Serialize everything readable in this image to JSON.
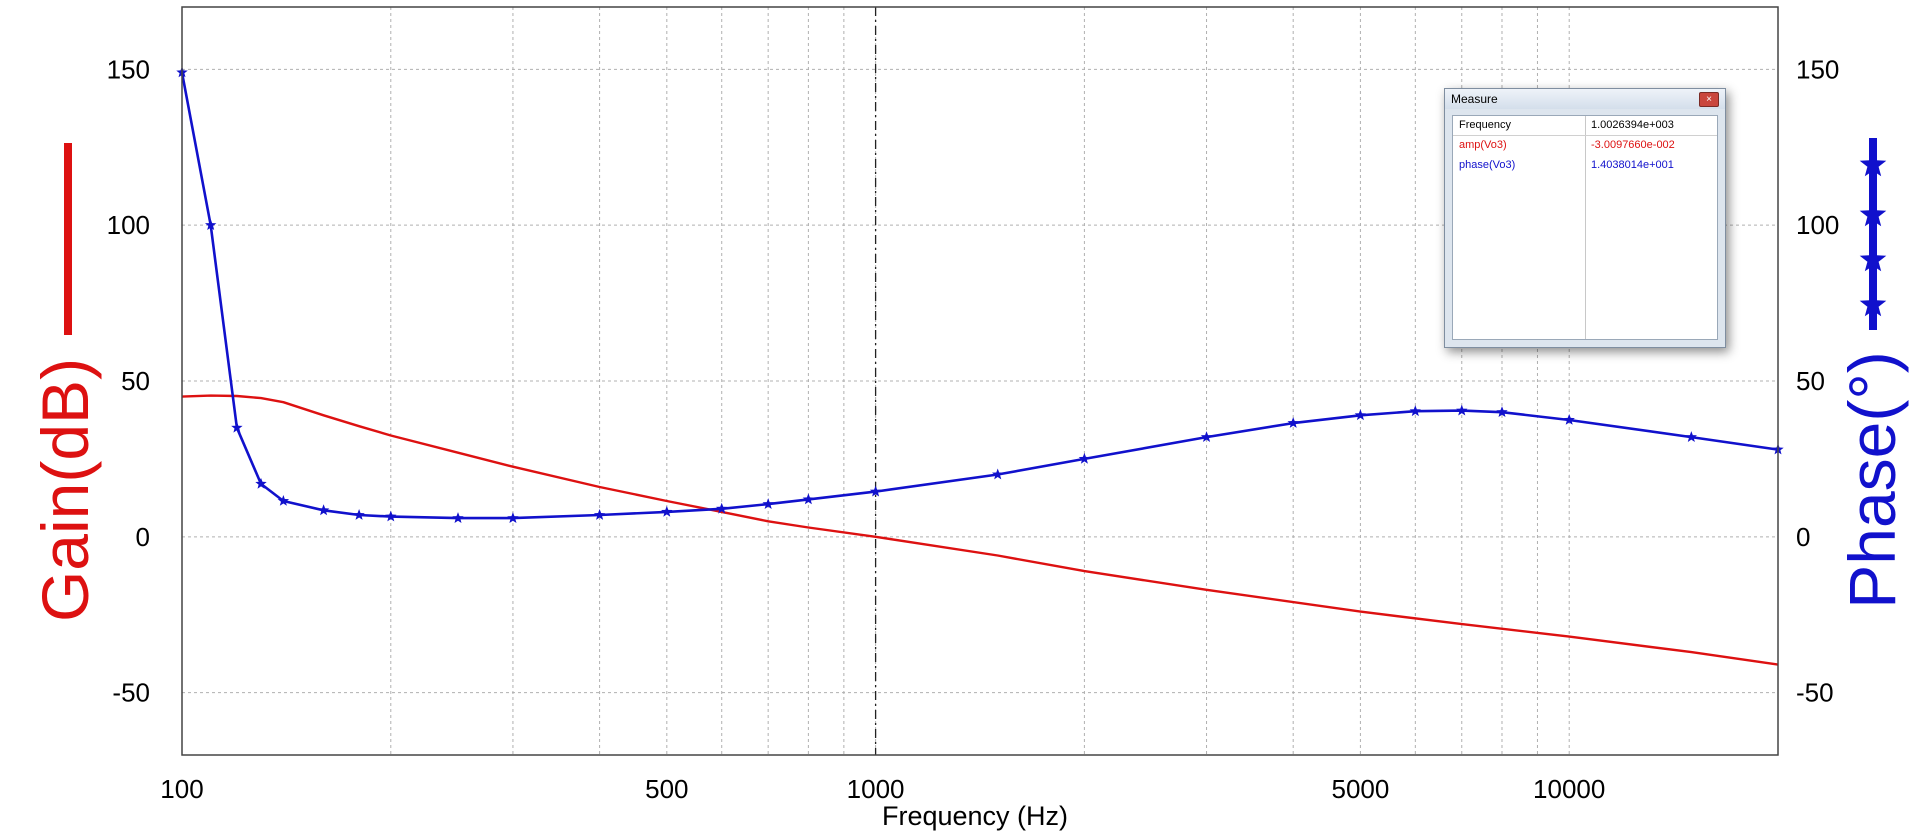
{
  "chart_data": {
    "type": "line",
    "xlabel": "Frequency (Hz)",
    "xscale": "log",
    "xlim": [
      100,
      20000
    ],
    "x_tick_labels": [
      "100",
      "500",
      "1000",
      "5000",
      "10000"
    ],
    "x_ticks": [
      100,
      500,
      1000,
      5000,
      10000
    ],
    "ylabel_left": "Gain(dB)",
    "ylabel_right": "Phase(°)",
    "ylim": [
      -70,
      170
    ],
    "y_tick_labels": [
      "150",
      "100",
      "50",
      "0",
      "-50"
    ],
    "y_ticks": [
      150,
      100,
      50,
      0,
      -50
    ],
    "grid": true,
    "cursor_x": 1000,
    "series": [
      {
        "color": "#dd1111",
        "axis": "left",
        "marker": "none",
        "x": [
          100,
          110,
          120,
          130,
          140,
          160,
          180,
          200,
          250,
          300,
          400,
          500,
          600,
          700,
          800,
          1000,
          1500,
          2000,
          3000,
          5000,
          7000,
          10000,
          15000,
          20000
        ],
        "y": [
          45,
          45.3,
          45.2,
          44.5,
          43.2,
          39,
          35.5,
          32.5,
          27,
          22.5,
          16,
          11.5,
          8,
          5,
          3,
          0,
          -6,
          -11,
          -17,
          -24,
          -28,
          -32,
          -37,
          -41
        ]
      },
      {
        "color": "#1111cc",
        "axis": "right",
        "marker": "star",
        "x": [
          100,
          110,
          120,
          130,
          140,
          160,
          180,
          200,
          250,
          300,
          400,
          500,
          600,
          700,
          800,
          1000,
          1500,
          2000,
          3000,
          4000,
          5000,
          6000,
          7000,
          8000,
          10000,
          15000,
          20000
        ],
        "y": [
          149,
          100,
          35,
          17,
          11.5,
          8.5,
          7,
          6.5,
          6,
          6,
          7,
          8,
          9,
          10.5,
          12,
          14.5,
          20,
          25,
          32,
          36.5,
          39,
          40.3,
          40.5,
          40,
          37.5,
          32,
          28
        ]
      }
    ]
  },
  "measure_window": {
    "title": "Measure",
    "close_symbol": "×",
    "rows": [
      {
        "name": "Frequency",
        "value": "1.0026394e+003",
        "color": "#000000"
      },
      {
        "name": "amp(Vo3)",
        "value": "-3.0097660e-002",
        "color": "#dd1111"
      },
      {
        "name": "phase(Vo3)",
        "value": "1.4038014e+001",
        "color": "#1111cc"
      }
    ]
  },
  "colors": {
    "gain": "#dd1111",
    "phase": "#1111cc",
    "grid": "#b0b0b0"
  }
}
